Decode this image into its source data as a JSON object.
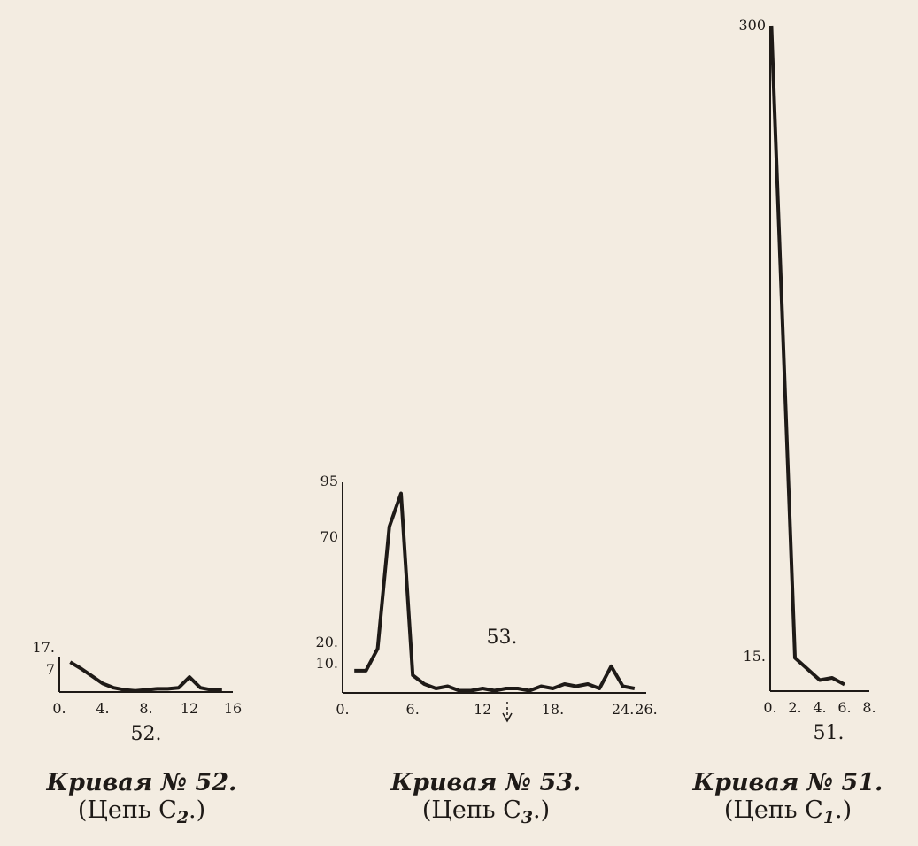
{
  "chart_data": [
    {
      "type": "line",
      "figure_number": "52.",
      "caption_title": "Кривая № 52.",
      "caption_chain": "(Цепь C",
      "caption_chain_sub": "2",
      "caption_chain_end": ".)",
      "x_tick_labels": [
        "0.",
        "4.",
        "8.",
        "12",
        "16"
      ],
      "x_tick_values": [
        0,
        4,
        8,
        12,
        16
      ],
      "y_tick_labels": [
        "17.",
        "7"
      ],
      "y_tick_values": [
        17,
        7
      ],
      "xlim": [
        0,
        16
      ],
      "ylim": [
        0,
        17
      ],
      "x": [
        1,
        2,
        3,
        4,
        5,
        6,
        7,
        8,
        9,
        10,
        11,
        12,
        13,
        14,
        15
      ],
      "y": [
        14,
        11,
        7.5,
        4,
        2,
        1,
        0.5,
        1,
        1.5,
        1.5,
        2,
        7,
        2,
        1,
        1
      ]
    },
    {
      "type": "line",
      "figure_number": "53.",
      "caption_title": "Кривая № 53.",
      "caption_chain": "(Цепь C",
      "caption_chain_sub": "3",
      "caption_chain_end": ".)",
      "x_tick_labels": [
        "0.",
        "6.",
        "12",
        "18.",
        "24.",
        "26."
      ],
      "x_tick_values": [
        0,
        6,
        12,
        18,
        24,
        26
      ],
      "y_tick_labels": [
        "95",
        "70",
        "20.",
        "10."
      ],
      "y_tick_values": [
        95,
        70,
        20,
        10
      ],
      "xlim": [
        0,
        26
      ],
      "ylim": [
        0,
        95
      ],
      "x": [
        1,
        2,
        3,
        4,
        5,
        6,
        7,
        8,
        9,
        10,
        11,
        12,
        13,
        14,
        15,
        16,
        17,
        18,
        19,
        20,
        21,
        22,
        23,
        24,
        25
      ],
      "y": [
        10,
        10,
        20,
        75,
        90,
        8,
        4,
        2,
        3,
        1,
        1,
        2,
        1,
        2,
        2,
        1,
        3,
        2,
        4,
        3,
        4,
        2,
        12,
        3,
        2
      ]
    },
    {
      "type": "line",
      "figure_number": "51.",
      "caption_title": "Кривая № 51.",
      "caption_chain": "(Цепь C",
      "caption_chain_sub": "1",
      "caption_chain_end": ".)",
      "x_tick_labels": [
        "0.",
        "2.",
        "4.",
        "6.",
        "8."
      ],
      "x_tick_values": [
        0,
        2,
        4,
        6,
        8
      ],
      "y_tick_labels": [
        "300",
        "15."
      ],
      "y_tick_values": [
        300,
        15
      ],
      "xlim": [
        0,
        8
      ],
      "ylim": [
        0,
        300
      ],
      "x": [
        0.1,
        2,
        3,
        4,
        5,
        6
      ],
      "y": [
        300,
        15,
        10,
        5,
        6,
        3
      ]
    }
  ]
}
